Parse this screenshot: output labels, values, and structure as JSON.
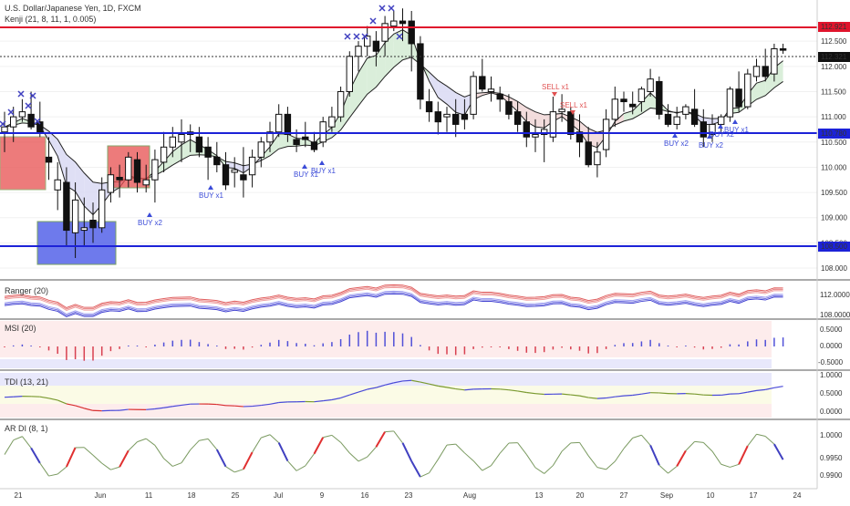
{
  "header": {
    "title": "U.S. Dollar/Japanese Yen, 1D, FXCM",
    "indicator": "Kenji (21, 8, 11, 1, 0.005)"
  },
  "price_labels": [
    {
      "text": "112.921",
      "color": "#e0142c"
    },
    {
      "text": "112.321",
      "color": "#111111"
    },
    {
      "text": "110.780",
      "color": "#1c22d8"
    },
    {
      "text": "108.500",
      "color": "#1c22d8"
    }
  ],
  "signals": [
    "BUY x1",
    "BUY x1",
    "BUY x1",
    "BUY x2",
    "SELL x1",
    "SELL x1",
    "BUY x2",
    "BUY x2",
    "BUY x2",
    "BUY x1"
  ],
  "panes": {
    "ranger": {
      "title": "Ranger (20)",
      "ticks": [
        "112.0000",
        "108.0000"
      ]
    },
    "msi": {
      "title": "MSI (20)",
      "ticks": [
        "0.5000",
        "0.0000",
        "-0.5000"
      ]
    },
    "tdi": {
      "title": "TDI (13, 21)",
      "ticks": [
        "1.0000",
        "0.5000",
        "0.0000"
      ]
    },
    "ardi": {
      "title": "AR DI (8, 1)",
      "ticks": [
        "1.0000",
        "0.9950",
        "0.9900"
      ]
    }
  },
  "colors": {
    "up": "#ffffff",
    "down": "#111111",
    "resistance": "#e0142c",
    "support": "#1c22d8",
    "buy": "#3b4bd8",
    "sell": "#e05050",
    "cross": "#4040c0"
  },
  "chart_data": [
    {
      "type": "candlestick",
      "title": "U.S. Dollar/Japanese Yen, 1D, FXCM",
      "x": [
        "May 17",
        "May 18",
        "May 21",
        "May 22",
        "May 23",
        "May 24",
        "May 25",
        "May 28",
        "May 29",
        "May 30",
        "May 31",
        "Jun 1",
        "Jun 4",
        "Jun 5",
        "Jun 6",
        "Jun 7",
        "Jun 8",
        "Jun 11",
        "Jun 12",
        "Jun 13",
        "Jun 14",
        "Jun 15",
        "Jun 18",
        "Jun 19",
        "Jun 20",
        "Jun 21",
        "Jun 22",
        "Jun 25",
        "Jun 26",
        "Jun 27",
        "Jun 28",
        "Jun 29",
        "Jul 2",
        "Jul 3",
        "Jul 4",
        "Jul 5",
        "Jul 6",
        "Jul 9",
        "Jul 10",
        "Jul 11",
        "Jul 12",
        "Jul 13",
        "Jul 16",
        "Jul 17",
        "Jul 18",
        "Jul 19",
        "Jul 20",
        "Jul 23",
        "Jul 24",
        "Jul 25",
        "Jul 26",
        "Jul 27",
        "Jul 30",
        "Jul 31",
        "Aug 1",
        "Aug 2",
        "Aug 3",
        "Aug 6",
        "Aug 7",
        "Aug 8",
        "Aug 9",
        "Aug 10",
        "Aug 13",
        "Aug 14",
        "Aug 15",
        "Aug 16",
        "Aug 17",
        "Aug 20",
        "Aug 21",
        "Aug 22",
        "Aug 23",
        "Aug 24",
        "Aug 27",
        "Aug 28",
        "Aug 29",
        "Aug 30",
        "Aug 31",
        "Sep 3",
        "Sep 4",
        "Sep 5",
        "Sep 6",
        "Sep 7",
        "Sep 10",
        "Sep 11",
        "Sep 12",
        "Sep 13",
        "Sep 14",
        "Sep 17",
        "Sep 18"
      ],
      "ohlc": [
        [
          110.7,
          111.1,
          110.3,
          110.8
        ],
        [
          110.8,
          111.2,
          110.5,
          111.0
        ],
        [
          111.0,
          111.35,
          110.9,
          111.1
        ],
        [
          111.05,
          111.5,
          110.75,
          110.8
        ],
        [
          110.9,
          111.3,
          110.6,
          110.7
        ],
        [
          110.2,
          110.6,
          109.75,
          110.1
        ],
        [
          109.55,
          110.1,
          109.15,
          109.75
        ],
        [
          109.7,
          110.0,
          108.45,
          108.75
        ],
        [
          108.7,
          109.7,
          108.2,
          109.35
        ],
        [
          108.75,
          109.4,
          108.45,
          108.8
        ],
        [
          108.95,
          109.3,
          108.5,
          108.8
        ],
        [
          108.8,
          109.8,
          108.7,
          109.55
        ],
        [
          109.5,
          110.0,
          109.3,
          109.85
        ],
        [
          109.8,
          110.05,
          109.4,
          109.75
        ],
        [
          109.75,
          110.3,
          109.6,
          110.2
        ],
        [
          110.15,
          110.3,
          109.5,
          109.7
        ],
        [
          109.65,
          110.05,
          109.5,
          109.75
        ],
        [
          109.75,
          110.35,
          109.3,
          110.15
        ],
        [
          110.1,
          110.7,
          109.9,
          110.4
        ],
        [
          110.4,
          110.8,
          110.2,
          110.6
        ],
        [
          110.5,
          110.95,
          110.1,
          110.65
        ],
        [
          110.65,
          110.85,
          110.3,
          110.7
        ],
        [
          110.6,
          110.8,
          110.2,
          110.3
        ],
        [
          110.4,
          110.6,
          109.75,
          110.2
        ],
        [
          110.2,
          110.5,
          109.9,
          110.05
        ],
        [
          110.05,
          110.3,
          109.55,
          109.65
        ],
        [
          109.9,
          110.2,
          109.6,
          109.95
        ],
        [
          109.85,
          110.4,
          109.4,
          109.75
        ],
        [
          109.85,
          110.35,
          109.6,
          110.2
        ],
        [
          110.2,
          110.6,
          110.0,
          110.5
        ],
        [
          110.5,
          110.9,
          110.3,
          110.7
        ],
        [
          110.7,
          111.25,
          110.6,
          111.05
        ],
        [
          111.05,
          111.2,
          110.5,
          110.65
        ],
        [
          110.55,
          110.75,
          110.3,
          110.45
        ],
        [
          110.6,
          110.9,
          110.4,
          110.55
        ],
        [
          110.5,
          110.7,
          110.3,
          110.35
        ],
        [
          110.5,
          111.0,
          110.4,
          110.9
        ],
        [
          110.8,
          111.2,
          110.7,
          111.0
        ],
        [
          111.0,
          111.6,
          110.9,
          111.5
        ],
        [
          111.5,
          112.3,
          111.4,
          112.2
        ],
        [
          112.2,
          112.5,
          111.9,
          112.4
        ],
        [
          112.4,
          112.8,
          112.2,
          112.6
        ],
        [
          112.5,
          112.7,
          112.0,
          112.3
        ],
        [
          112.5,
          113.0,
          112.2,
          112.85
        ],
        [
          112.8,
          113.1,
          112.7,
          112.9
        ],
        [
          112.9,
          113.15,
          112.5,
          112.85
        ],
        [
          112.9,
          113.1,
          111.9,
          112.45
        ],
        [
          112.45,
          112.6,
          111.15,
          111.35
        ],
        [
          111.3,
          111.55,
          110.9,
          111.1
        ],
        [
          111.1,
          111.3,
          110.65,
          110.9
        ],
        [
          111.0,
          111.2,
          110.7,
          111.05
        ],
        [
          111.05,
          111.35,
          110.6,
          110.85
        ],
        [
          111.05,
          111.35,
          110.75,
          110.95
        ],
        [
          111.05,
          111.9,
          110.95,
          111.8
        ],
        [
          111.8,
          112.15,
          111.5,
          111.55
        ],
        [
          111.5,
          111.8,
          111.3,
          111.55
        ],
        [
          111.45,
          111.6,
          111.1,
          111.35
        ],
        [
          111.3,
          111.45,
          110.95,
          111.05
        ],
        [
          111.1,
          111.3,
          110.7,
          110.85
        ],
        [
          110.9,
          111.1,
          110.4,
          110.6
        ],
        [
          110.6,
          110.95,
          110.3,
          110.65
        ],
        [
          110.65,
          110.95,
          110.1,
          110.75
        ],
        [
          110.6,
          111.4,
          110.5,
          111.1
        ],
        [
          111.1,
          111.45,
          110.9,
          111.15
        ],
        [
          111.1,
          111.2,
          110.55,
          110.65
        ],
        [
          110.7,
          111.05,
          110.2,
          110.5
        ],
        [
          110.5,
          110.8,
          110.0,
          110.05
        ],
        [
          110.05,
          110.5,
          109.8,
          110.3
        ],
        [
          110.35,
          111.15,
          110.2,
          110.95
        ],
        [
          110.95,
          111.6,
          110.8,
          111.35
        ],
        [
          111.35,
          111.5,
          111.1,
          111.3
        ],
        [
          111.25,
          111.5,
          111.05,
          111.2
        ],
        [
          111.3,
          111.6,
          111.1,
          111.55
        ],
        [
          111.5,
          111.95,
          111.4,
          111.75
        ],
        [
          111.7,
          111.8,
          110.95,
          111.05
        ],
        [
          111.05,
          111.25,
          110.8,
          110.85
        ],
        [
          110.85,
          111.2,
          110.75,
          111.0
        ],
        [
          111.05,
          111.25,
          110.95,
          111.2
        ],
        [
          111.15,
          111.55,
          110.8,
          110.85
        ],
        [
          110.9,
          111.15,
          110.4,
          110.6
        ],
        [
          110.65,
          111.05,
          110.5,
          110.85
        ],
        [
          110.85,
          111.05,
          110.7,
          111.0
        ],
        [
          111.0,
          111.6,
          110.9,
          111.55
        ],
        [
          111.55,
          111.9,
          111.1,
          111.2
        ],
        [
          111.2,
          111.95,
          111.15,
          111.85
        ],
        [
          111.8,
          112.15,
          111.7,
          112.0
        ],
        [
          112.0,
          112.35,
          111.7,
          111.8
        ],
        [
          111.85,
          112.45,
          111.7,
          112.35
        ],
        [
          112.35,
          112.45,
          112.25,
          112.32
        ]
      ],
      "levels": [
        {
          "price": 112.921,
          "label": "112.921"
        },
        {
          "price": 110.78,
          "label": "110.780"
        },
        {
          "price": 108.5,
          "label": "108.500"
        }
      ],
      "ticks": [
        "112.500",
        "112.000",
        "111.500",
        "111.000",
        "110.500",
        "110.000",
        "109.500",
        "109.000",
        "108.500",
        "108.000"
      ],
      "xlabels": [
        "21",
        "Jun",
        "11",
        "18",
        "25",
        "Jul",
        "9",
        "16",
        "23",
        "Aug",
        "13",
        "20",
        "27",
        "Sep",
        "10",
        "17",
        "24"
      ]
    },
    {
      "type": "line",
      "title": "Ranger (20)"
    },
    {
      "type": "bar",
      "title": "MSI (20)"
    },
    {
      "type": "line",
      "title": "TDI (13, 21)"
    },
    {
      "type": "line",
      "title": "AR DI (8, 1)"
    }
  ]
}
